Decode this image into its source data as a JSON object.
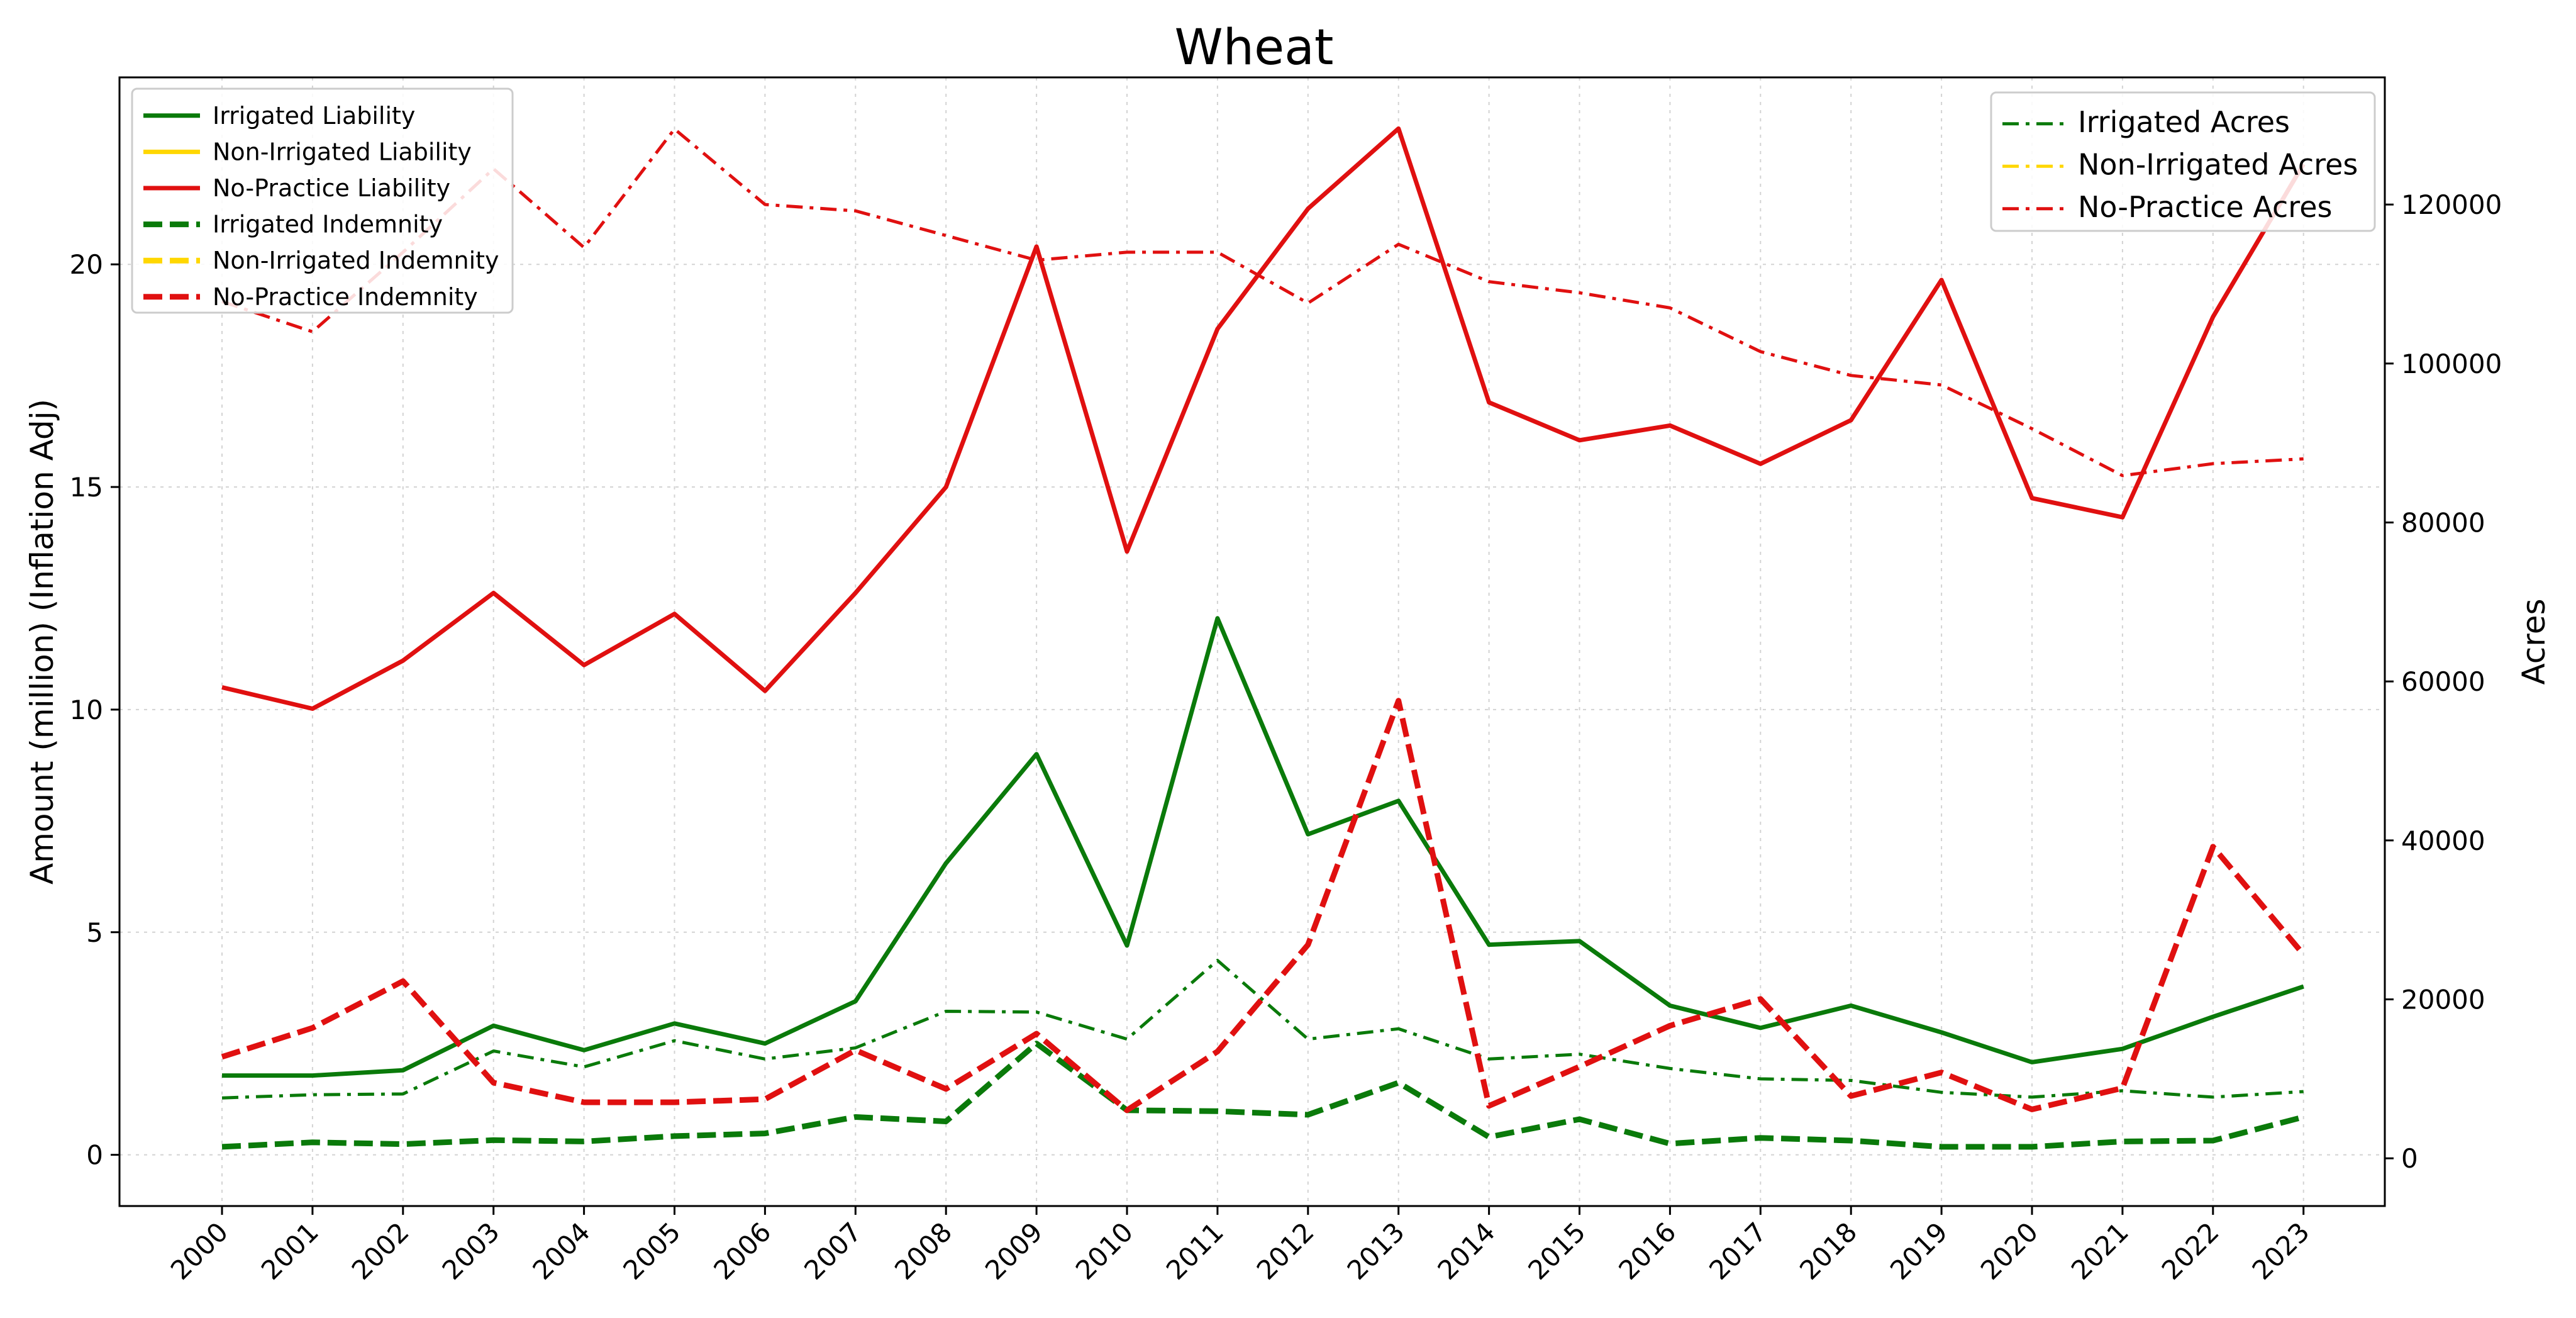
{
  "chart_data": {
    "type": "line",
    "title": "Wheat",
    "ylabel_left": "Amount (million) (Inflation Adj)",
    "ylabel_right": "Acres",
    "xlabel": "",
    "grid": true,
    "x": [
      2000,
      2001,
      2002,
      2003,
      2004,
      2005,
      2006,
      2007,
      2008,
      2009,
      2010,
      2011,
      2012,
      2013,
      2014,
      2015,
      2016,
      2017,
      2018,
      2019,
      2020,
      2021,
      2022,
      2023
    ],
    "ylim_left": [
      -1.15,
      24.2
    ],
    "ylim_right": [
      -6000,
      136000
    ],
    "yticks_left": [
      0,
      5,
      10,
      15,
      20
    ],
    "yticks_right": [
      0,
      20000,
      40000,
      60000,
      80000,
      100000,
      120000
    ],
    "legend_left_position": "upper left",
    "legend_right_position": "upper right",
    "series_left": [
      {
        "name": "Irrigated Liability",
        "color": "#0a7a0a",
        "style": "solid",
        "values": [
          1.78,
          1.78,
          1.9,
          2.9,
          2.35,
          2.95,
          2.5,
          3.45,
          6.55,
          9.0,
          4.7,
          12.05,
          7.2,
          7.95,
          4.72,
          4.8,
          3.35,
          2.85,
          3.35,
          2.75,
          2.08,
          2.38,
          3.1,
          3.78
        ]
      },
      {
        "name": "Non-Irrigated Liability",
        "color": "#ffd700",
        "style": "solid",
        "values": []
      },
      {
        "name": "No-Practice Liability",
        "color": "#e01010",
        "style": "solid",
        "values": [
          10.5,
          10.02,
          11.1,
          12.62,
          11.0,
          12.15,
          10.42,
          12.62,
          15.0,
          20.4,
          13.55,
          18.55,
          21.25,
          23.05,
          16.9,
          16.05,
          16.38,
          15.52,
          16.5,
          19.65,
          14.75,
          14.32,
          18.82,
          22.25
        ]
      },
      {
        "name": "Irrigated Indemnity",
        "color": "#0a7a0a",
        "style": "dashed",
        "values": [
          0.18,
          0.28,
          0.24,
          0.33,
          0.3,
          0.42,
          0.48,
          0.85,
          0.75,
          2.5,
          1.0,
          0.98,
          0.9,
          1.62,
          0.4,
          0.8,
          0.25,
          0.38,
          0.32,
          0.18,
          0.18,
          0.3,
          0.32,
          0.85
        ]
      },
      {
        "name": "Non-Irrigated Indemnity",
        "color": "#ffd700",
        "style": "dashed",
        "values": []
      },
      {
        "name": "No-Practice Indemnity",
        "color": "#e01010",
        "style": "dashed",
        "values": [
          2.2,
          2.85,
          3.9,
          1.62,
          1.18,
          1.18,
          1.25,
          2.35,
          1.48,
          2.72,
          1.0,
          2.32,
          4.72,
          10.2,
          1.1,
          1.98,
          2.9,
          3.5,
          1.32,
          1.85,
          1.02,
          1.5,
          6.92,
          4.5
        ]
      }
    ],
    "series_right": [
      {
        "name": "Irrigated Acres",
        "color": "#0a7a0a",
        "style": "dashdot",
        "values": [
          7600,
          8000,
          8100,
          13500,
          11500,
          14800,
          12500,
          13900,
          18500,
          18400,
          15000,
          24900,
          15000,
          16300,
          12500,
          13100,
          11300,
          10000,
          9800,
          8300,
          7700,
          8500,
          7700,
          8400
        ]
      },
      {
        "name": "Non-Irrigated Acres",
        "color": "#ffd700",
        "style": "dashdot",
        "values": []
      },
      {
        "name": "No-Practice Acres",
        "color": "#e01010",
        "style": "dashdot",
        "values": [
          107800,
          104000,
          114000,
          124500,
          114600,
          129500,
          120000,
          119200,
          116100,
          113000,
          114000,
          114000,
          107600,
          115000,
          110300,
          108900,
          107000,
          101500,
          98500,
          97300,
          91800,
          85900,
          87400,
          88000
        ]
      }
    ]
  }
}
